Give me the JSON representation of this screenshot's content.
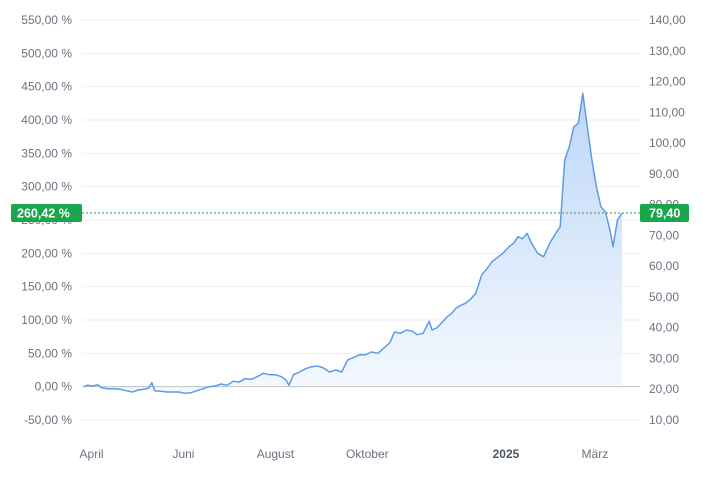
{
  "chart_data": {
    "type": "area",
    "title": "",
    "xlabel": "",
    "ylabel": "",
    "grid": true,
    "legend": "none",
    "colors": {
      "line": "#5c9ce6",
      "fill_top": "#b9d4f7",
      "fill_bottom": "#f4f8fe",
      "marker": "#1aa64b",
      "zero_line": "#bcc3cb",
      "grid": "#eceef1"
    },
    "y_left": {
      "min": -50,
      "max": 550,
      "ticks": [
        "550,00 %",
        "500,00 %",
        "450,00 %",
        "400,00 %",
        "350,00 %",
        "300,00 %",
        "250,00 %",
        "200,00 %",
        "150,00 %",
        "100,00 %",
        "50,00 %",
        "0,00 %",
        "-50,00 %"
      ]
    },
    "y_right": {
      "min": 10,
      "max": 140,
      "ticks": [
        "140,00",
        "130,00",
        "120,00",
        "110,00",
        "100,00",
        "90,00",
        "80,00",
        "70,00",
        "60,00",
        "50,00",
        "40,00",
        "30,00",
        "20,00",
        "10,00"
      ]
    },
    "x_ticks": [
      {
        "label": "April",
        "date": "2024-04-01",
        "bold": false
      },
      {
        "label": "Juni",
        "date": "2024-06-01",
        "bold": false
      },
      {
        "label": "August",
        "date": "2024-08-01",
        "bold": false
      },
      {
        "label": "Oktober",
        "date": "2024-10-01",
        "bold": false
      },
      {
        "label": "2025",
        "date": "2025-01-01",
        "bold": true
      },
      {
        "label": "März",
        "date": "2025-03-01",
        "bold": false
      }
    ],
    "x_range": [
      "2024-03-27",
      "2025-03-19"
    ],
    "current": {
      "percent": 260.42,
      "percent_label": "260,42 %",
      "price": 79.4,
      "price_label": "79,40"
    },
    "series": [
      {
        "values": [
          [
            "2024-03-27",
            0
          ],
          [
            "2024-03-29",
            2
          ],
          [
            "2024-04-02",
            1
          ],
          [
            "2024-04-05",
            3
          ],
          [
            "2024-04-08",
            -2
          ],
          [
            "2024-04-12",
            -3
          ],
          [
            "2024-04-16",
            -3
          ],
          [
            "2024-04-20",
            -4
          ],
          [
            "2024-04-24",
            -6
          ],
          [
            "2024-04-28",
            -8
          ],
          [
            "2024-05-02",
            -5
          ],
          [
            "2024-05-06",
            -4
          ],
          [
            "2024-05-09",
            -2
          ],
          [
            "2024-05-11",
            6
          ],
          [
            "2024-05-13",
            -6
          ],
          [
            "2024-05-17",
            -7
          ],
          [
            "2024-05-21",
            -8
          ],
          [
            "2024-05-25",
            -8
          ],
          [
            "2024-05-29",
            -8
          ],
          [
            "2024-06-02",
            -10
          ],
          [
            "2024-06-06",
            -9
          ],
          [
            "2024-06-10",
            -6
          ],
          [
            "2024-06-14",
            -3
          ],
          [
            "2024-06-18",
            0
          ],
          [
            "2024-06-22",
            1
          ],
          [
            "2024-06-26",
            4
          ],
          [
            "2024-06-30",
            2
          ],
          [
            "2024-07-04",
            8
          ],
          [
            "2024-07-08",
            7
          ],
          [
            "2024-07-12",
            12
          ],
          [
            "2024-07-16",
            11
          ],
          [
            "2024-07-20",
            15
          ],
          [
            "2024-07-24",
            20
          ],
          [
            "2024-07-28",
            18
          ],
          [
            "2024-08-01",
            18
          ],
          [
            "2024-08-05",
            15
          ],
          [
            "2024-08-08",
            10
          ],
          [
            "2024-08-10",
            2
          ],
          [
            "2024-08-13",
            18
          ],
          [
            "2024-08-17",
            22
          ],
          [
            "2024-08-21",
            27
          ],
          [
            "2024-08-25",
            30
          ],
          [
            "2024-08-29",
            31
          ],
          [
            "2024-09-02",
            28
          ],
          [
            "2024-09-06",
            22
          ],
          [
            "2024-09-10",
            25
          ],
          [
            "2024-09-14",
            22
          ],
          [
            "2024-09-18",
            40
          ],
          [
            "2024-09-22",
            44
          ],
          [
            "2024-09-26",
            48
          ],
          [
            "2024-09-30",
            48
          ],
          [
            "2024-10-04",
            52
          ],
          [
            "2024-10-08",
            50
          ],
          [
            "2024-10-12",
            58
          ],
          [
            "2024-10-16",
            66
          ],
          [
            "2024-10-19",
            82
          ],
          [
            "2024-10-23",
            80
          ],
          [
            "2024-10-27",
            85
          ],
          [
            "2024-10-31",
            83
          ],
          [
            "2024-11-03",
            78
          ],
          [
            "2024-11-07",
            80
          ],
          [
            "2024-11-11",
            98
          ],
          [
            "2024-11-13",
            85
          ],
          [
            "2024-11-16",
            88
          ],
          [
            "2024-11-19",
            95
          ],
          [
            "2024-11-23",
            105
          ],
          [
            "2024-11-26",
            110
          ],
          [
            "2024-11-29",
            118
          ],
          [
            "2024-12-02",
            122
          ],
          [
            "2024-12-05",
            125
          ],
          [
            "2024-12-08",
            130
          ],
          [
            "2024-12-12",
            140
          ],
          [
            "2024-12-16",
            168
          ],
          [
            "2024-12-19",
            176
          ],
          [
            "2024-12-23",
            188
          ],
          [
            "2024-12-27",
            195
          ],
          [
            "2024-12-30",
            200
          ],
          [
            "2025-01-03",
            210
          ],
          [
            "2025-01-06",
            215
          ],
          [
            "2025-01-09",
            225
          ],
          [
            "2025-01-12",
            222
          ],
          [
            "2025-01-15",
            230
          ],
          [
            "2025-01-18",
            215
          ],
          [
            "2025-01-22",
            200
          ],
          [
            "2025-01-26",
            195
          ],
          [
            "2025-01-30",
            215
          ],
          [
            "2025-02-03",
            230
          ],
          [
            "2025-02-06",
            240
          ],
          [
            "2025-02-09",
            340
          ],
          [
            "2025-02-12",
            360
          ],
          [
            "2025-02-15",
            390
          ],
          [
            "2025-02-18",
            395
          ],
          [
            "2025-02-21",
            440
          ],
          [
            "2025-02-24",
            390
          ],
          [
            "2025-02-27",
            340
          ],
          [
            "2025-03-02",
            300
          ],
          [
            "2025-03-05",
            270
          ],
          [
            "2025-03-08",
            262
          ],
          [
            "2025-03-11",
            235
          ],
          [
            "2025-03-13",
            210
          ],
          [
            "2025-03-16",
            250
          ],
          [
            "2025-03-19",
            260.42
          ]
        ]
      }
    ]
  }
}
